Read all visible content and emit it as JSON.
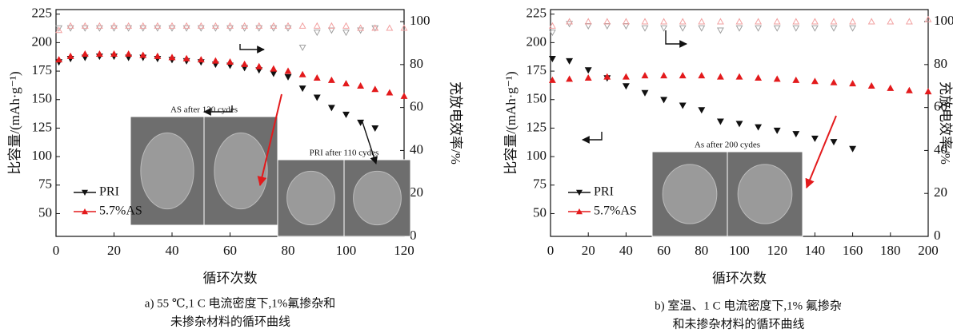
{
  "chart_data": [
    {
      "type": "line",
      "xlabel": "循环次数",
      "ylabel": "比容量/(mAh·g⁻¹)",
      "y2label": "充放电效率/%",
      "caption": [
        "a) 55 ℃,1 C 电流密度下,1%氟掺杂和",
        "未掺杂材料的循环曲线"
      ],
      "annotations": [
        "AS after 120 cydes",
        "PRI after 110 cydes"
      ],
      "x": [
        1,
        5,
        10,
        15,
        20,
        25,
        30,
        35,
        40,
        45,
        50,
        55,
        60,
        65,
        70,
        75,
        80,
        85,
        90,
        95,
        100,
        105,
        110,
        115,
        120
      ],
      "xlim": [
        0,
        120
      ],
      "xticks": [
        0,
        20,
        40,
        60,
        80,
        100,
        120
      ],
      "ylim": [
        30,
        229
      ],
      "yticks": [
        50,
        75,
        100,
        125,
        150,
        175,
        200,
        225
      ],
      "y2lim": [
        0,
        105.6
      ],
      "y2ticks": [
        0,
        20,
        40,
        60,
        80,
        100
      ],
      "series": [
        {
          "name": "PRI",
          "color": "#111111",
          "values": [
            183,
            186,
            187,
            188,
            188,
            187,
            187,
            186,
            185,
            184,
            183,
            181,
            180,
            178,
            176,
            173,
            170,
            160,
            152,
            143,
            137,
            130,
            125,
            null,
            null
          ]
        },
        {
          "name": "5.7%AS",
          "color": "#e31a1c",
          "values": [
            185,
            188,
            190,
            190,
            190,
            190,
            189,
            188,
            187,
            186,
            185,
            184,
            183,
            181,
            179,
            177,
            175,
            172,
            169,
            167,
            164,
            162,
            159,
            156,
            153
          ]
        },
        {
          "color": "#a0a0a0",
          "axis": "y2",
          "values": [
            97,
            97,
            97,
            97,
            97,
            97,
            97,
            97,
            97,
            97,
            97,
            97,
            97,
            97,
            97,
            97,
            97,
            88,
            95,
            96,
            95,
            96,
            97,
            null,
            null
          ]
        },
        {
          "color": "#f2a0a0",
          "axis": "y2",
          "values": [
            96,
            98,
            98,
            98,
            98,
            98,
            98,
            98,
            98,
            98,
            98,
            98,
            98,
            98,
            98,
            98,
            98,
            98,
            98,
            98,
            98,
            97,
            97,
            97,
            97
          ]
        }
      ]
    },
    {
      "type": "line",
      "xlabel": "循环次数",
      "ylabel": "比容量/(mAh·g⁻¹)",
      "y2label": "充放电效率/%",
      "caption": [
        "b) 室温、1 C 电流密度下,1% 氟掺杂",
        "和未掺杂材料的循环曲线"
      ],
      "annotations": [
        "As after 200 cydes"
      ],
      "x": [
        1,
        10,
        20,
        30,
        40,
        50,
        60,
        70,
        80,
        90,
        100,
        110,
        120,
        130,
        140,
        150,
        160,
        170,
        180,
        190,
        200
      ],
      "xlim": [
        0,
        200
      ],
      "xticks": [
        0,
        20,
        40,
        60,
        80,
        100,
        120,
        140,
        160,
        180,
        200
      ],
      "ylim": [
        30,
        229
      ],
      "yticks": [
        50,
        75,
        100,
        125,
        150,
        175,
        200,
        225
      ],
      "y2lim": [
        0,
        105.6
      ],
      "y2ticks": [
        0,
        20,
        40,
        60,
        80,
        100
      ],
      "series": [
        {
          "name": "PRI",
          "color": "#111111",
          "values": [
            186,
            184,
            176,
            169,
            162,
            156,
            150,
            145,
            141,
            131,
            129,
            126,
            123,
            120,
            116,
            113,
            107,
            null,
            null,
            null,
            null
          ]
        },
        {
          "name": "5.7%AS",
          "color": "#e31a1c",
          "values": [
            167,
            168,
            169,
            170,
            170,
            171,
            171,
            171,
            171,
            170,
            170,
            169,
            168,
            167,
            166,
            165,
            164,
            162,
            160,
            158,
            157
          ]
        },
        {
          "color": "#a0a0a0",
          "axis": "y2",
          "values": [
            95,
            99,
            98,
            98,
            98,
            97,
            97,
            97,
            97,
            96,
            97,
            97,
            97,
            97,
            97,
            97,
            97,
            null,
            null,
            null,
            null
          ]
        },
        {
          "color": "#f2a0a0",
          "axis": "y2",
          "values": [
            98,
            100,
            100,
            100,
            100,
            100,
            100,
            100,
            100,
            100,
            100,
            100,
            100,
            100,
            100,
            100,
            100,
            100,
            100,
            100,
            101
          ]
        }
      ]
    }
  ]
}
